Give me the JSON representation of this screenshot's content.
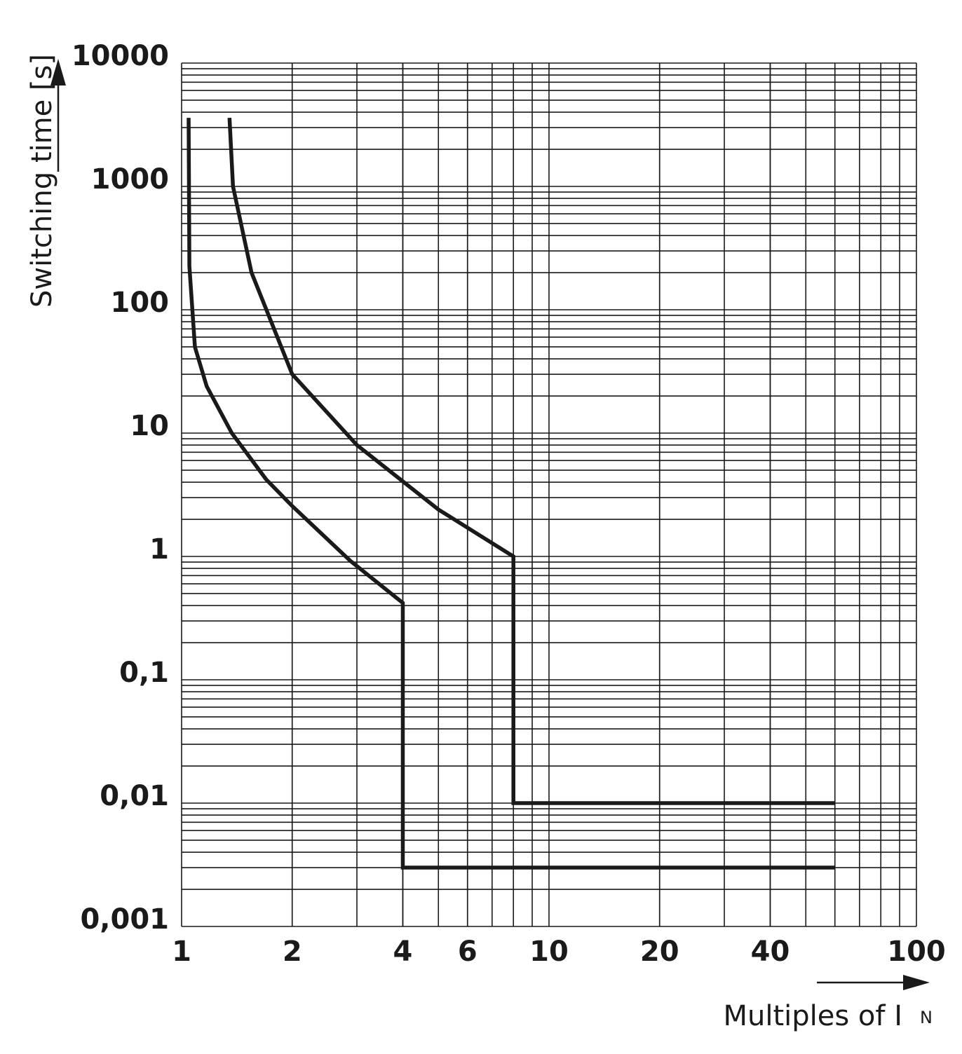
{
  "chart_data": {
    "type": "line",
    "x_label": "Multiples of I",
    "x_label_subscript": "N",
    "y_label": "Switching time [s]",
    "log_x": true,
    "log_y": true,
    "grid": true,
    "xlim": [
      1,
      100
    ],
    "xticks": [
      1,
      2,
      4,
      6,
      10,
      20,
      40,
      100
    ],
    "ylim": [
      0.001,
      10000
    ],
    "yticks": [
      {
        "value": 0.001,
        "label": "0,001"
      },
      {
        "value": 0.01,
        "label": "0,01"
      },
      {
        "value": 0.1,
        "label": "0,1"
      },
      1,
      10,
      100,
      1000,
      10000
    ],
    "series": [
      {
        "color": "#1a1a1a",
        "x": [
          1.045,
          1.05,
          1.087,
          1.17,
          1.37,
          1.7,
          1.99,
          2.88,
          4,
          4,
          60
        ],
        "values": [
          3600,
          225,
          50,
          24,
          10,
          4.2,
          2.6,
          0.92,
          0.42,
          0.003,
          0.003
        ]
      },
      {
        "color": "#1a1a1a",
        "x": [
          1.35,
          1.38,
          1.55,
          2,
          3,
          5,
          8,
          8,
          60
        ],
        "values": [
          3600,
          1000,
          200,
          30,
          8,
          2.4,
          1,
          0.01,
          0.01
        ]
      }
    ]
  }
}
